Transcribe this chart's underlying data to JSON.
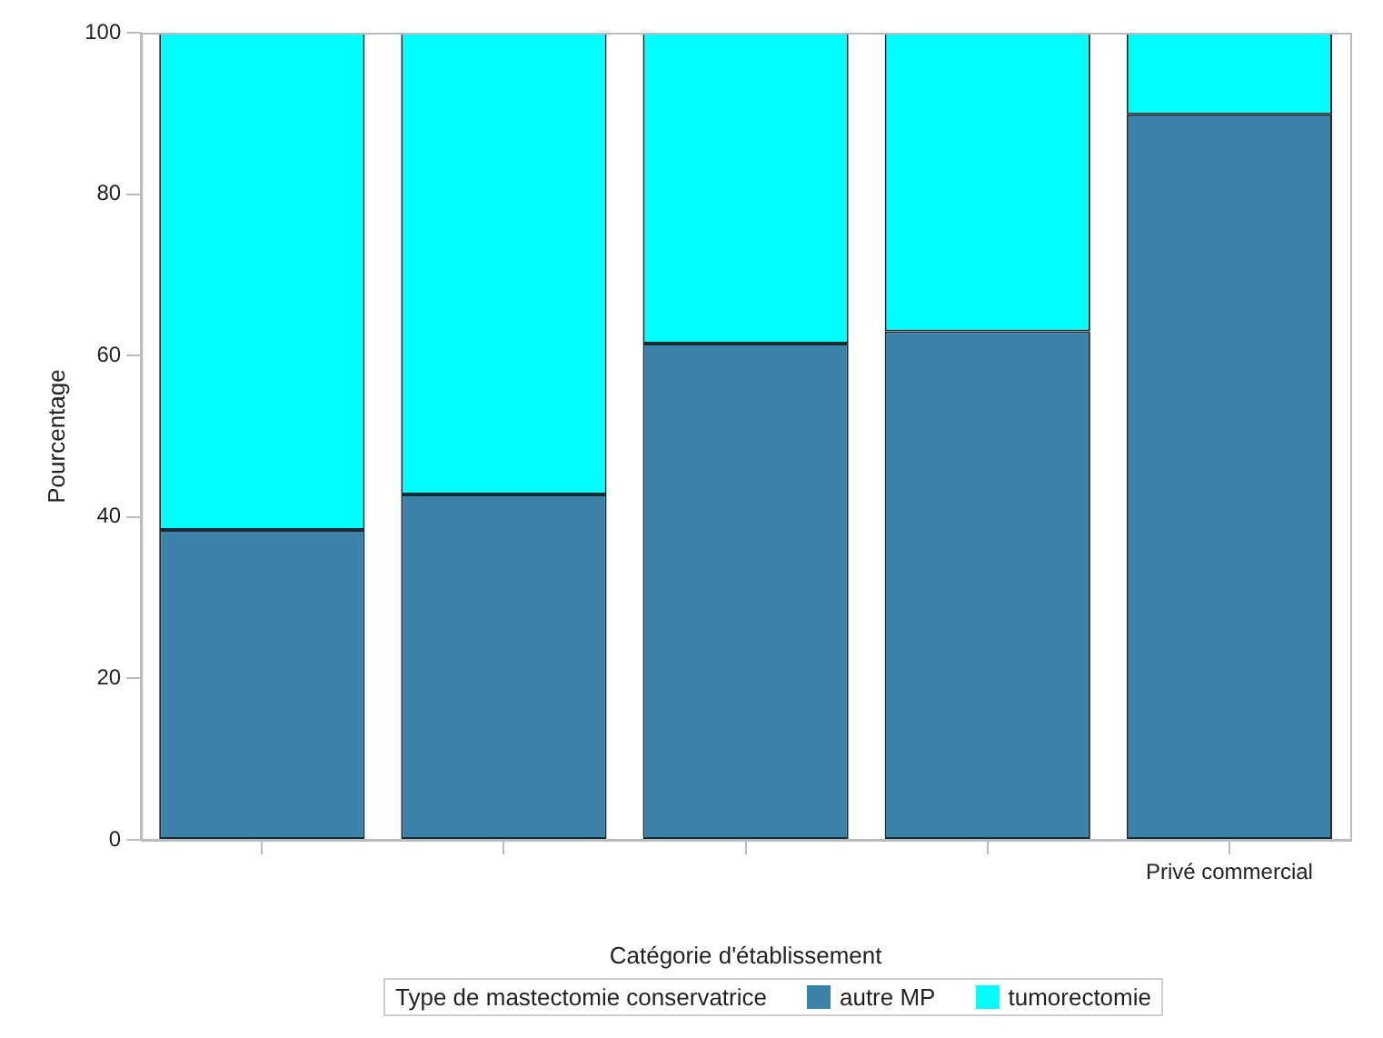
{
  "chart_data": {
    "type": "bar",
    "stacked": true,
    "xlabel": "Catégorie d'établissement",
    "ylabel": "Pourcentage",
    "legend_title": "Type de mastectomie conservatrice",
    "legend": "bottom",
    "categories": [
      null,
      null,
      null,
      null,
      "Privé commercial"
    ],
    "ylim": [
      0,
      100
    ],
    "yticks": [
      0,
      20,
      40,
      60,
      80,
      100
    ],
    "grid": false,
    "series": [
      {
        "name": "autre MP",
        "color": "#3a82a8",
        "values": [
          38.4,
          42.8,
          61.5,
          63,
          89.9
        ]
      },
      {
        "name": "tumorectomie",
        "color": "#00ffff",
        "values": [
          61.6,
          57.2,
          38.5,
          37,
          10.1
        ]
      }
    ]
  }
}
